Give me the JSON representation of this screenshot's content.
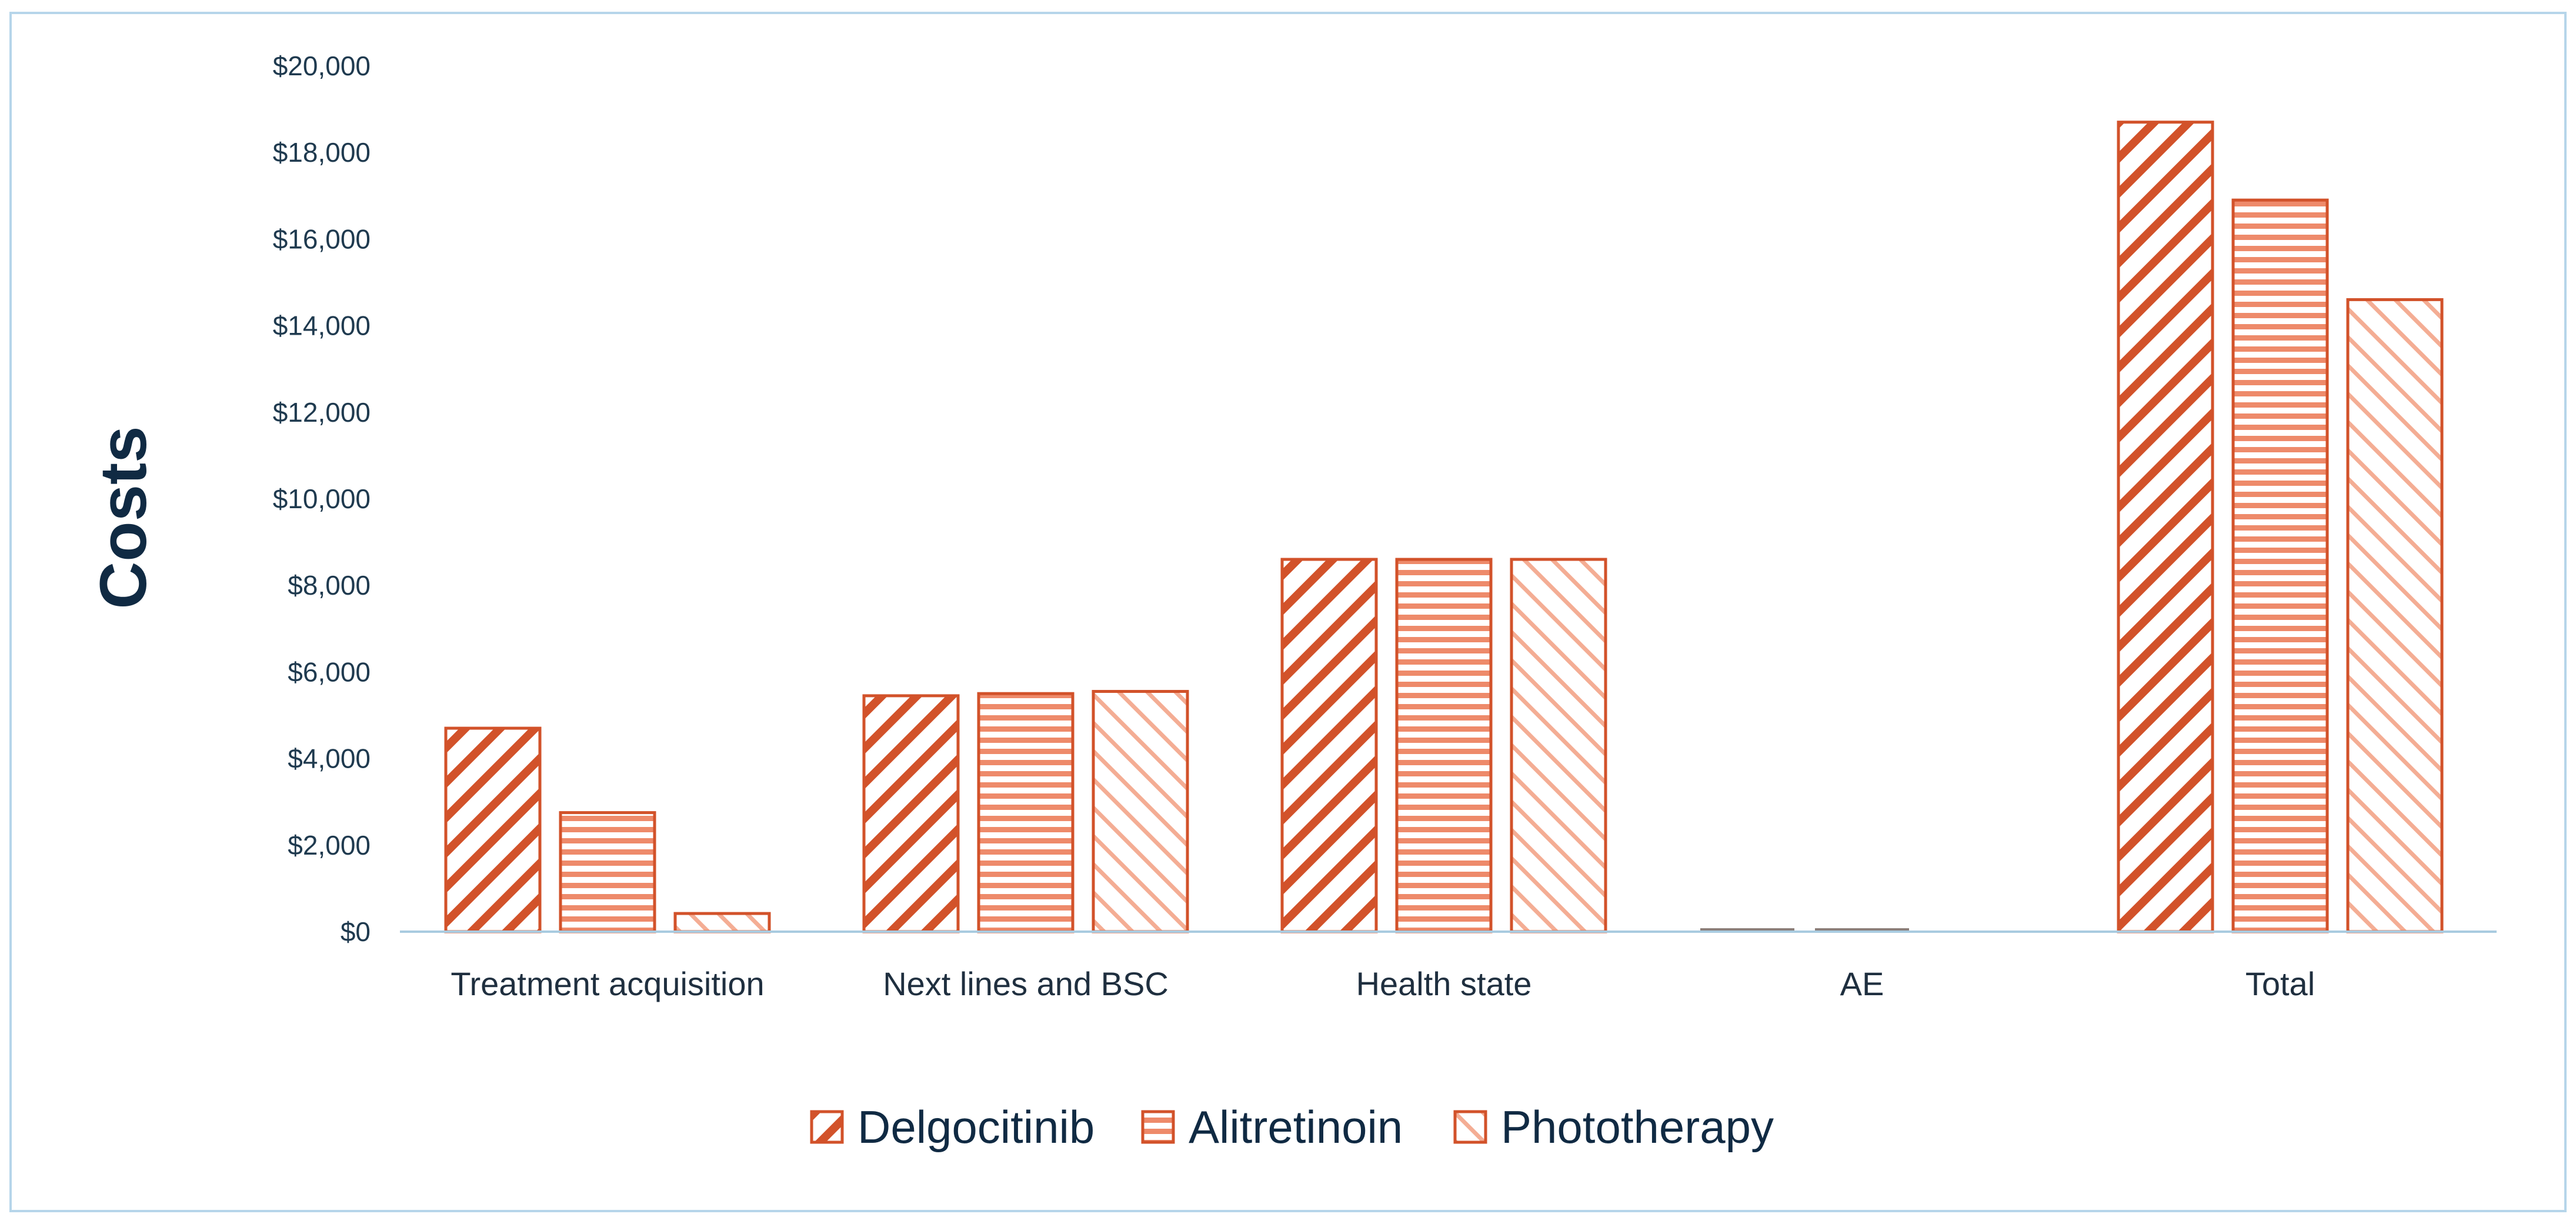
{
  "chart_data": {
    "type": "bar",
    "title": "",
    "xlabel": "",
    "ylabel": "Costs",
    "ylim": [
      0,
      20000
    ],
    "yticks": [
      0,
      2000,
      4000,
      6000,
      8000,
      10000,
      12000,
      14000,
      16000,
      18000,
      20000
    ],
    "ytick_labels": [
      "$0",
      "$2,000",
      "$4,000",
      "$6,000",
      "$8,000",
      "$10,000",
      "$12,000",
      "$14,000",
      "$16,000",
      "$18,000",
      "$20,000"
    ],
    "categories": [
      "Treatment acquisition",
      "Next lines and BSC",
      "Health state",
      "AE",
      "Total"
    ],
    "series": [
      {
        "name": "Delgocitinib",
        "values": [
          4700,
          5450,
          8600,
          80,
          18700
        ]
      },
      {
        "name": "Alitretinoin",
        "values": [
          2750,
          5500,
          8600,
          80,
          16900
        ]
      },
      {
        "name": "Phototherapy",
        "values": [
          420,
          5550,
          8600,
          0,
          14600
        ]
      }
    ],
    "grid": false,
    "legend_position": "bottom",
    "colors": {
      "stroke": "#d2522a",
      "hatch_delgocitinib": "#d2522a",
      "hatch_alitretinoin": "#ee8a6a",
      "hatch_phototherapy": "#f4ad94",
      "axis": "#a9cbe0",
      "border": "#b6d5ea"
    }
  }
}
